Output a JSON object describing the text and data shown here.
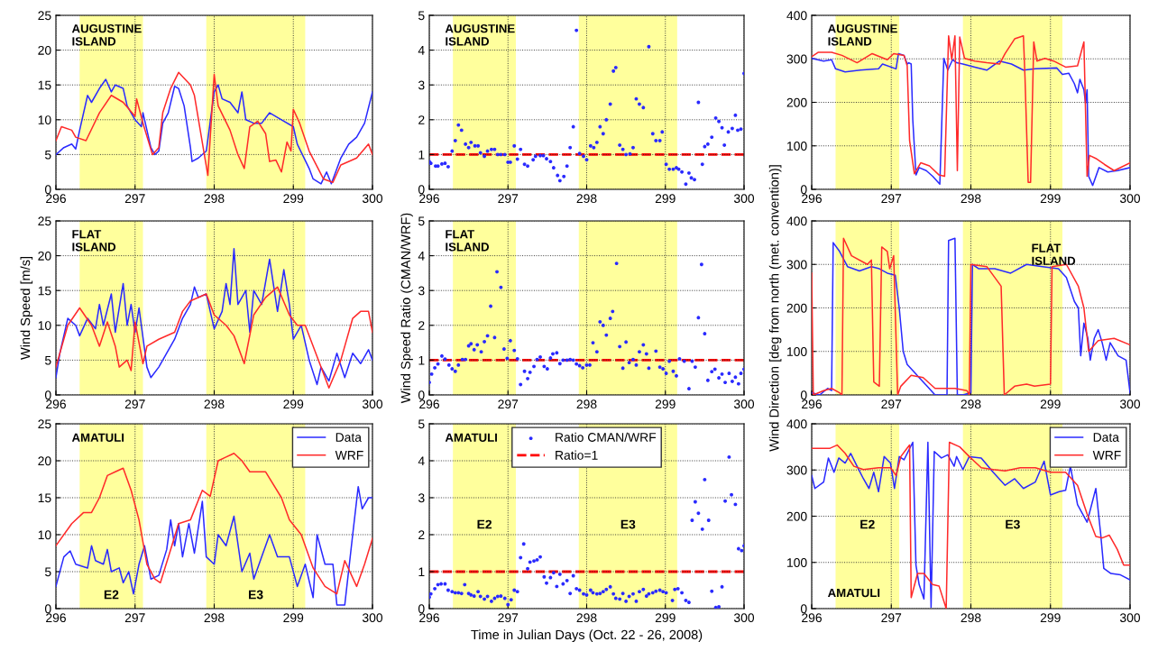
{
  "chart_data": [
    {
      "type": "line",
      "xlim": [
        296,
        300
      ],
      "ylim": [
        0,
        25
      ],
      "xticks": [
        296,
        297,
        298,
        299,
        300
      ],
      "yticks": [
        0,
        5,
        10,
        15,
        20,
        25
      ],
      "grid": true,
      "annotations": [
        "AUGUSTINE\nISLAND"
      ],
      "bands": [
        {
          "axis": "x",
          "from": 296.3,
          "to": 297.1,
          "color": "#ffff9c"
        },
        {
          "axis": "x",
          "from": 297.9,
          "to": 299.15,
          "color": "#ffff9c"
        }
      ],
      "series": [
        {
          "color": "#2a2aff",
          "x": [
            296,
            296.1,
            296.2,
            296.25,
            296.3,
            296.4,
            296.45,
            296.55,
            296.63,
            296.7,
            296.75,
            296.85,
            296.9,
            297.0,
            297.08,
            297.1,
            297.2,
            297.25,
            297.3,
            297.35,
            297.42,
            297.5,
            297.55,
            297.62,
            297.7,
            297.72,
            297.8,
            297.9,
            298.0,
            298.05,
            298.1,
            298.2,
            298.3,
            298.35,
            298.4,
            298.5,
            298.6,
            298.7,
            298.85,
            299.0,
            299.05,
            299.2,
            299.25,
            299.35,
            299.42,
            299.48,
            299.6,
            299.7,
            299.8,
            299.9,
            300
          ],
          "values": [
            5,
            6,
            6.5,
            5.8,
            8.5,
            13.5,
            12.5,
            14.5,
            15.8,
            14,
            15,
            14.5,
            12,
            10,
            9,
            11,
            6,
            5,
            5.5,
            9.5,
            11,
            14.8,
            14.5,
            12,
            6,
            4,
            4.5,
            5.5,
            14,
            15,
            13,
            12.5,
            11,
            14,
            10,
            9.5,
            9.5,
            11,
            10,
            9,
            6.5,
            3,
            1.5,
            0.8,
            2.5,
            0.8,
            4.5,
            6.5,
            7.5,
            9.5,
            14
          ]
        },
        {
          "color": "#ff2a2a",
          "x": [
            296,
            296.07,
            296.2,
            296.25,
            296.38,
            296.55,
            296.7,
            296.85,
            297.0,
            297.02,
            297.1,
            297.22,
            297.3,
            297.35,
            297.45,
            297.55,
            297.7,
            297.75,
            297.92,
            298.0,
            298.05,
            298.2,
            298.3,
            298.38,
            298.45,
            298.55,
            298.65,
            298.7,
            298.78,
            298.85,
            298.92,
            298.97,
            299.0,
            299.08,
            299.2,
            299.38,
            299.5,
            299.6,
            299.8,
            299.95,
            300
          ],
          "values": [
            7,
            9,
            8.5,
            7.5,
            7,
            11,
            13.5,
            12.5,
            10.5,
            13,
            9.5,
            5,
            6,
            11,
            14.5,
            16.8,
            15,
            13.5,
            2,
            16.5,
            12,
            8.5,
            5,
            3,
            9,
            9.8,
            8,
            4,
            4.2,
            2.5,
            6.8,
            5.5,
            11.5,
            9.5,
            5.5,
            1.5,
            1,
            3.5,
            4.5,
            6.5,
            5
          ]
        }
      ]
    },
    {
      "type": "scatter",
      "xlim": [
        296,
        300
      ],
      "ylim": [
        0,
        5
      ],
      "xticks": [
        296,
        297,
        298,
        299,
        300
      ],
      "yticks": [
        0,
        1,
        2,
        3,
        4,
        5
      ],
      "grid": true,
      "marker": "circle",
      "annotations": [
        "AUGUSTINE\nISLAND"
      ],
      "bands": [
        {
          "axis": "x",
          "from": 296.3,
          "to": 297.1,
          "color": "#ffff9c"
        },
        {
          "axis": "x",
          "from": 297.9,
          "to": 299.15,
          "color": "#ffff9c"
        }
      ],
      "ref_lines": [
        {
          "axis": "y",
          "value": 1,
          "color": "#ff0000",
          "line_style": "dashed"
        }
      ],
      "series": [
        {
          "color": "#2a2aff",
          "x": [
            296,
            296.02,
            296.08,
            296.11,
            296.16,
            296.2,
            296.24,
            296.29,
            296.33,
            296.37,
            296.41,
            296.46,
            296.5,
            296.53,
            296.58,
            296.62,
            296.65,
            296.7,
            296.74,
            296.79,
            296.83,
            296.87,
            296.91,
            296.96,
            297.0,
            297.03,
            297.08,
            297.12,
            297.16,
            297.21,
            297.25,
            297.32,
            297.35,
            297.41,
            297.45,
            297.49,
            297.54,
            297.58,
            297.63,
            297.66,
            297.71,
            297.75,
            297.79,
            297.83,
            297.87,
            297.91,
            297.96,
            298.0,
            298.05,
            298.09,
            298.13,
            298.17,
            298.21,
            298.25,
            298.3,
            298.34,
            298.37,
            298.42,
            298.46,
            298.5,
            298.55,
            298.59,
            298.63,
            298.67,
            298.72,
            298.79,
            298.84,
            298.88,
            298.93,
            298.96,
            299.01,
            299.05,
            299.1,
            299.14,
            299.17,
            299.21,
            299.26,
            299.3,
            299.33,
            299.37,
            299.42,
            299.47,
            299.5,
            299.54,
            299.59,
            299.64,
            299.68,
            299.72,
            299.75,
            299.8,
            299.85,
            299.89,
            299.92,
            299.96,
            300
          ],
          "values": [
            0.8,
            0.75,
            0.67,
            0.67,
            0.73,
            0.75,
            0.65,
            1.1,
            1.4,
            1.85,
            1.7,
            1.3,
            1.2,
            1.35,
            1.25,
            1.25,
            1.05,
            0.95,
            1.1,
            1.15,
            1.15,
            1.0,
            1.0,
            1.0,
            0.78,
            0.78,
            1.25,
            0.87,
            1.15,
            0.72,
            0.67,
            0.85,
            0.95,
            0.97,
            0.97,
            0.88,
            0.8,
            0.62,
            0.4,
            0.25,
            0.37,
            0.67,
            1.2,
            1.8,
            4.57,
            1.03,
            0.95,
            0.85,
            1.25,
            1.2,
            1.35,
            1.8,
            1.6,
            2.0,
            2.45,
            3.4,
            3.5,
            1.27,
            1.15,
            1.0,
            1.02,
            1.2,
            2.6,
            2.45,
            2.35,
            4.1,
            1.6,
            1.4,
            1.4,
            1.65,
            0.72,
            0.58,
            0.58,
            0.62,
            0.58,
            0.5,
            0.15,
            0.47,
            0.33,
            0.28,
            2.5,
            0.72,
            1.23,
            1.3,
            1.5,
            2.05,
            1.95,
            1.77,
            1.27,
            1.65,
            1.75,
            2.13,
            1.7,
            1.73,
            3.33
          ]
        }
      ]
    },
    {
      "type": "line",
      "xlim": [
        296,
        300
      ],
      "ylim": [
        0,
        400
      ],
      "xticks": [
        296,
        297,
        298,
        299,
        300
      ],
      "yticks": [
        0,
        100,
        200,
        300,
        400
      ],
      "grid": true,
      "annotations": [
        "AUGUSTINE\nISLAND"
      ],
      "bands": [
        {
          "axis": "x",
          "from": 296.3,
          "to": 297.1,
          "color": "#ffff9c"
        },
        {
          "axis": "x",
          "from": 297.9,
          "to": 299.15,
          "color": "#ffff9c"
        }
      ],
      "series": [
        {
          "color": "#2a2aff",
          "x": [
            296,
            296.15,
            296.25,
            296.3,
            296.42,
            296.61,
            296.84,
            296.89,
            297.06,
            297.09,
            297.16,
            297.2,
            297.22,
            297.25,
            297.27,
            297.31,
            297.35,
            297.44,
            297.52,
            297.61,
            297.66,
            297.71,
            297.77,
            297.82,
            297.9,
            298.05,
            298.2,
            298.36,
            298.51,
            298.66,
            298.81,
            299.08,
            299.15,
            299.23,
            299.3,
            299.34,
            299.37,
            299.42,
            299.44,
            299.46,
            299.48,
            299.53,
            299.61,
            299.72,
            299.84,
            300
          ],
          "values": [
            301,
            295,
            298,
            277,
            270,
            274,
            277,
            288,
            277,
            312,
            308,
            288,
            291,
            288,
            160,
            33,
            50,
            43,
            30,
            12,
            301,
            274,
            298,
            291,
            288,
            281,
            274,
            295,
            288,
            274,
            277,
            279,
            264,
            267,
            243,
            222,
            253,
            229,
            198,
            229,
            30,
            9,
            50,
            40,
            43,
            50
          ]
        },
        {
          "color": "#ff2a2a",
          "x": [
            296,
            296.08,
            296.25,
            296.38,
            296.57,
            296.76,
            296.95,
            297.03,
            297.16,
            297.2,
            297.23,
            297.29,
            297.37,
            297.48,
            297.6,
            297.67,
            297.72,
            297.76,
            297.8,
            297.83,
            297.86,
            297.92,
            298.05,
            298.2,
            298.36,
            298.43,
            298.55,
            298.66,
            298.68,
            298.72,
            298.75,
            298.79,
            298.83,
            298.93,
            299.04,
            299.19,
            299.34,
            299.42,
            299.46,
            299.49,
            299.57,
            299.68,
            299.8,
            300
          ],
          "values": [
            305,
            315,
            315,
            308,
            291,
            312,
            298,
            312,
            308,
            284,
            112,
            36,
            61,
            54,
            33,
            30,
            353,
            298,
            353,
            43,
            350,
            301,
            295,
            291,
            288,
            312,
            346,
            353,
            257,
            16,
            16,
            339,
            295,
            301,
            295,
            281,
            284,
            339,
            30,
            78,
            71,
            57,
            43,
            61
          ]
        }
      ]
    },
    {
      "type": "line",
      "xlim": [
        296,
        300
      ],
      "ylim": [
        0,
        25
      ],
      "xticks": [
        296,
        297,
        298,
        299,
        300
      ],
      "yticks": [
        0,
        5,
        10,
        15,
        20,
        25
      ],
      "grid": true,
      "ylabel": "Wind Speed [m/s]",
      "annotations": [
        "FLAT\nISLAND"
      ],
      "bands": [
        {
          "axis": "x",
          "from": 296.3,
          "to": 297.1,
          "color": "#ffff9c"
        },
        {
          "axis": "x",
          "from": 297.9,
          "to": 299.15,
          "color": "#ffff9c"
        }
      ],
      "series": [
        {
          "color": "#2a2aff",
          "x": [
            296,
            296.05,
            296.15,
            296.25,
            296.3,
            296.4,
            296.5,
            296.55,
            296.6,
            296.7,
            296.75,
            296.85,
            296.9,
            296.95,
            297.0,
            297.05,
            297.15,
            297.2,
            297.3,
            297.4,
            297.5,
            297.6,
            297.7,
            297.75,
            297.8,
            297.9,
            298.0,
            298.1,
            298.15,
            298.2,
            298.25,
            298.3,
            298.4,
            298.45,
            298.5,
            298.6,
            298.7,
            298.8,
            298.88,
            298.95,
            299.0,
            299.1,
            299.2,
            299.3,
            299.35,
            299.45,
            299.55,
            299.65,
            299.75,
            299.85,
            299.95,
            300
          ],
          "values": [
            2.5,
            6,
            11,
            10,
            8.5,
            11,
            9.5,
            13,
            10,
            14.5,
            9,
            16,
            10,
            13,
            9,
            12.5,
            4,
            2.5,
            4,
            6,
            8,
            11,
            13,
            15.5,
            14,
            14.5,
            9.5,
            12,
            16,
            13,
            21,
            13,
            15,
            9,
            15,
            13,
            19.5,
            12,
            18,
            13,
            8,
            10,
            5,
            1.5,
            4,
            2,
            6,
            2.5,
            6,
            4.5,
            6.5,
            5
          ]
        },
        {
          "color": "#ff2a2a",
          "x": [
            296,
            296.15,
            296.3,
            296.45,
            296.55,
            296.65,
            296.75,
            296.8,
            296.9,
            296.95,
            297.0,
            297.1,
            297.15,
            297.3,
            297.5,
            297.6,
            297.7,
            297.9,
            298.0,
            298.15,
            298.25,
            298.38,
            298.5,
            298.65,
            298.8,
            298.95,
            299.05,
            299.15,
            299.3,
            299.45,
            299.6,
            299.75,
            299.85,
            299.95,
            300
          ],
          "values": [
            4,
            10,
            12.5,
            10,
            7,
            10.5,
            7,
            4,
            5,
            3.5,
            10.5,
            4.5,
            7,
            8,
            9,
            12,
            13.5,
            14.5,
            11.5,
            10,
            8.5,
            4.5,
            11.5,
            14,
            15.5,
            11.5,
            10,
            10,
            5.5,
            1,
            5,
            11,
            12,
            12,
            9
          ]
        }
      ]
    },
    {
      "type": "scatter",
      "xlim": [
        296,
        300
      ],
      "ylim": [
        0,
        5
      ],
      "xticks": [
        296,
        297,
        298,
        299,
        300
      ],
      "yticks": [
        0,
        1,
        2,
        3,
        4,
        5
      ],
      "grid": true,
      "marker": "circle",
      "ylabel": "Wind Speed Ratio (CMAN/WRF)",
      "annotations": [
        "FLAT\nISLAND"
      ],
      "bands": [
        {
          "axis": "x",
          "from": 296.3,
          "to": 297.1,
          "color": "#ffff9c"
        },
        {
          "axis": "x",
          "from": 297.9,
          "to": 299.15,
          "color": "#ffff9c"
        }
      ],
      "ref_lines": [
        {
          "axis": "y",
          "value": 1,
          "color": "#ff0000",
          "line_style": "dashed"
        }
      ],
      "series": [
        {
          "color": "#2a2aff",
          "x": [
            296,
            296.03,
            296.07,
            296.11,
            296.16,
            296.2,
            296.25,
            296.29,
            296.33,
            296.37,
            296.42,
            296.46,
            296.5,
            296.53,
            296.57,
            296.61,
            296.66,
            296.7,
            296.74,
            296.78,
            296.83,
            296.86,
            296.91,
            296.95,
            296.99,
            297.03,
            297.08,
            297.12,
            297.16,
            297.21,
            297.25,
            297.28,
            297.33,
            297.37,
            297.41,
            297.46,
            297.5,
            297.54,
            297.57,
            297.62,
            297.66,
            297.7,
            297.75,
            297.79,
            297.83,
            297.87,
            297.91,
            297.95,
            298.0,
            298.04,
            298.08,
            298.13,
            298.17,
            298.21,
            298.25,
            298.3,
            298.33,
            298.38,
            298.42,
            298.46,
            298.5,
            298.54,
            298.59,
            298.63,
            298.67,
            298.72,
            298.76,
            298.79,
            298.88,
            298.93,
            298.97,
            299.01,
            299.05,
            299.1,
            299.14,
            299.18,
            299.24,
            299.3,
            299.34,
            299.38,
            299.42,
            299.46,
            299.5,
            299.54,
            299.59,
            299.63,
            299.68,
            299.72,
            299.76,
            299.81,
            299.85,
            299.89,
            299.93,
            299.96,
            300
          ],
          "values": [
            0.36,
            0.6,
            0.78,
            0.89,
            1.12,
            1.03,
            0.86,
            0.75,
            0.68,
            0.86,
            1.02,
            1.02,
            1.41,
            1.47,
            1.3,
            1.44,
            1.24,
            1.53,
            1.7,
            2.55,
            1.65,
            3.54,
            3.09,
            1.32,
            1.05,
            1.56,
            1.28,
            1.04,
            0.3,
            0.68,
            0.47,
            0.65,
            0.82,
            1.02,
            1.09,
            0.82,
            0.75,
            1.06,
            1.18,
            1.21,
            0.9,
            1.0,
            1.0,
            1.02,
            1.0,
            0.89,
            0.84,
            0.78,
            0.86,
            0.86,
            1.5,
            1.24,
            2.1,
            2.0,
            1.72,
            2.2,
            2.4,
            3.78,
            1.39,
            0.77,
            1.52,
            0.93,
            1.02,
            0.86,
            1.24,
            1.44,
            1.18,
            0.77,
            1.26,
            0.8,
            0.75,
            0.62,
            0.97,
            0.68,
            0.55,
            1.04,
            0.97,
            0.18,
            0.97,
            0.8,
            2.22,
            3.75,
            1.76,
            0.42,
            0.67,
            0.74,
            0.49,
            0.6,
            0.36,
            0.62,
            0.39,
            0.51,
            0.32,
            0.62,
            0.74
          ]
        }
      ]
    },
    {
      "type": "line",
      "xlim": [
        296,
        300
      ],
      "ylim": [
        0,
        400
      ],
      "xticks": [
        296,
        297,
        298,
        299,
        300
      ],
      "yticks": [
        0,
        100,
        200,
        300,
        400
      ],
      "grid": true,
      "ylabel": "Wind Direction [deg from north (met. convention)]",
      "annotations": [
        "FLAT\nISLAND"
      ],
      "bands": [
        {
          "axis": "x",
          "from": 296.3,
          "to": 297.1,
          "color": "#ffff9c"
        },
        {
          "axis": "x",
          "from": 297.9,
          "to": 299.15,
          "color": "#ffff9c"
        }
      ],
      "series": [
        {
          "color": "#2a2aff",
          "x": [
            296,
            296.1,
            296.2,
            296.25,
            296.27,
            296.35,
            296.45,
            296.6,
            296.75,
            296.85,
            296.95,
            297.05,
            297.1,
            297.15,
            297.2,
            297.35,
            297.45,
            297.55,
            297.7,
            297.72,
            297.8,
            297.83,
            297.9,
            298.0,
            298.02,
            298.1,
            298.3,
            298.5,
            298.7,
            298.9,
            299.1,
            299.2,
            299.3,
            299.35,
            299.38,
            299.42,
            299.47,
            299.5,
            299.55,
            299.6,
            299.65,
            299.7,
            299.75,
            299.85,
            299.95,
            300
          ],
          "values": [
            5,
            0,
            15,
            10,
            350,
            330,
            295,
            285,
            295,
            290,
            280,
            275,
            200,
            100,
            70,
            40,
            20,
            0,
            0,
            355,
            360,
            0,
            0,
            5,
            300,
            290,
            290,
            280,
            300,
            295,
            290,
            270,
            215,
            200,
            90,
            165,
            130,
            80,
            130,
            150,
            120,
            80,
            120,
            90,
            80,
            5
          ]
        },
        {
          "color": "#ff2a2a",
          "x": [
            296,
            296.02,
            296.15,
            296.25,
            296.35,
            296.38,
            296.4,
            296.5,
            296.7,
            296.75,
            296.78,
            296.85,
            296.88,
            296.95,
            296.98,
            297.03,
            297.08,
            297.12,
            297.25,
            297.4,
            297.55,
            297.8,
            297.95,
            297.98,
            298.0,
            298.2,
            298.38,
            298.42,
            298.55,
            298.7,
            298.8,
            299.0,
            299.02,
            299.2,
            299.35,
            299.42,
            299.48,
            299.6,
            299.8,
            300
          ],
          "values": [
            280,
            0,
            10,
            15,
            5,
            0,
            360,
            320,
            300,
            310,
            30,
            20,
            340,
            330,
            290,
            320,
            0,
            20,
            45,
            40,
            15,
            15,
            10,
            0,
            300,
            295,
            250,
            0,
            20,
            25,
            20,
            25,
            295,
            300,
            250,
            200,
            100,
            125,
            130,
            115
          ]
        }
      ]
    },
    {
      "type": "line",
      "xlim": [
        296,
        300
      ],
      "ylim": [
        0,
        25
      ],
      "xticks": [
        296,
        297,
        298,
        299,
        300
      ],
      "yticks": [
        0,
        5,
        10,
        15,
        20,
        25
      ],
      "grid": true,
      "legend": "top right",
      "annotations": [
        "AMATULI"
      ],
      "bands": [
        {
          "axis": "x",
          "from": 296.3,
          "to": 297.1,
          "color": "#ffff9c",
          "label": "E2"
        },
        {
          "axis": "x",
          "from": 297.9,
          "to": 299.15,
          "color": "#ffff9c",
          "label": "E3"
        }
      ],
      "series": [
        {
          "name": "Data",
          "color": "#2a2aff",
          "x": [
            296,
            296.1,
            296.18,
            296.25,
            296.4,
            296.45,
            296.5,
            296.6,
            296.65,
            296.7,
            296.8,
            296.85,
            296.92,
            296.98,
            297.05,
            297.12,
            297.2,
            297.3,
            297.4,
            297.45,
            297.5,
            297.55,
            297.6,
            297.68,
            297.75,
            297.85,
            297.9,
            298.0,
            298.05,
            298.15,
            298.25,
            298.35,
            298.45,
            298.5,
            298.6,
            298.7,
            298.8,
            298.95,
            299.05,
            299.15,
            299.25,
            299.3,
            299.4,
            299.5,
            299.55,
            299.65,
            299.75,
            299.82,
            299.87,
            299.95,
            300
          ],
          "values": [
            3,
            7,
            7.8,
            6,
            5.5,
            8.5,
            6.5,
            6,
            8,
            5,
            5.5,
            3.5,
            5,
            2,
            6,
            8.5,
            4,
            4.5,
            8,
            12,
            8.5,
            11.5,
            7,
            11.5,
            7.5,
            14.5,
            7,
            6,
            10,
            8.5,
            12.5,
            5,
            7.5,
            4,
            7,
            10,
            7,
            7,
            3,
            6,
            1.5,
            10,
            6,
            6,
            0.5,
            0.5,
            10,
            16.5,
            13.5,
            15,
            15
          ]
        },
        {
          "name": "WRF",
          "color": "#ff2a2a",
          "x": [
            296,
            296.2,
            296.35,
            296.45,
            296.55,
            296.65,
            296.75,
            296.85,
            296.95,
            297.05,
            297.15,
            297.25,
            297.32,
            297.45,
            297.55,
            297.7,
            297.85,
            297.95,
            298.05,
            298.15,
            298.25,
            298.35,
            298.45,
            298.65,
            298.85,
            298.95,
            299.1,
            299.25,
            299.4,
            299.55,
            299.65,
            299.8,
            299.9,
            300
          ],
          "values": [
            8.5,
            11.5,
            13,
            13,
            15,
            18,
            18.5,
            19,
            16,
            12,
            6,
            4,
            3.5,
            8,
            11.5,
            12,
            16,
            15.2,
            20,
            20.5,
            21,
            20,
            18.5,
            18.5,
            15,
            12,
            10,
            5.5,
            3,
            2,
            6.5,
            3,
            6,
            9.5
          ]
        }
      ]
    },
    {
      "type": "scatter",
      "xlim": [
        296,
        300
      ],
      "ylim": [
        0,
        5
      ],
      "xticks": [
        296,
        297,
        298,
        299,
        300
      ],
      "yticks": [
        0,
        1,
        2,
        3,
        4,
        5
      ],
      "grid": true,
      "marker": "circle",
      "legend": "top",
      "xlabel": "Time in Julian Days (Oct. 22 - 26, 2008)",
      "annotations": [
        "AMATULI"
      ],
      "bands": [
        {
          "axis": "x",
          "from": 296.3,
          "to": 297.1,
          "color": "#ffff9c",
          "label": "E2"
        },
        {
          "axis": "x",
          "from": 297.9,
          "to": 299.15,
          "color": "#ffff9c",
          "label": "E3"
        }
      ],
      "ref_lines": [
        {
          "axis": "y",
          "value": 1,
          "color": "#ff0000",
          "line_style": "dashed",
          "label": "Ratio=1"
        }
      ],
      "series": [
        {
          "name": "Ratio CMAN/WRF",
          "color": "#2a2aff",
          "x": [
            296,
            296.02,
            296.07,
            296.11,
            296.15,
            296.2,
            296.24,
            296.29,
            296.33,
            296.37,
            296.41,
            296.45,
            296.5,
            296.53,
            296.57,
            296.62,
            296.65,
            296.7,
            296.74,
            296.79,
            296.83,
            296.87,
            296.91,
            296.96,
            297.0,
            297.04,
            297.08,
            297.12,
            297.16,
            297.2,
            297.25,
            297.28,
            297.33,
            297.37,
            297.41,
            297.46,
            297.49,
            297.54,
            297.58,
            297.62,
            297.66,
            297.7,
            297.75,
            297.79,
            297.83,
            297.87,
            297.91,
            297.96,
            298.0,
            298.05,
            298.08,
            298.13,
            298.17,
            298.21,
            298.25,
            298.3,
            298.34,
            298.37,
            298.42,
            298.46,
            298.5,
            298.54,
            298.59,
            298.63,
            298.67,
            298.72,
            298.76,
            298.79,
            298.84,
            298.88,
            298.93,
            298.97,
            299.01,
            299.09,
            299.12,
            299.16,
            299.21,
            299.26,
            299.3,
            299.34,
            299.38,
            299.42,
            299.47,
            299.5,
            299.55,
            299.59,
            299.64,
            299.68,
            299.72,
            299.76,
            299.81,
            299.84,
            299.89,
            299.93,
            299.97,
            300
          ],
          "values": [
            0.31,
            0.4,
            0.54,
            0.65,
            0.67,
            0.67,
            0.5,
            0.46,
            0.43,
            0.43,
            0.41,
            0.65,
            0.41,
            0.37,
            0.34,
            0.46,
            0.33,
            0.26,
            0.33,
            0.2,
            0.28,
            0.33,
            0.34,
            0.28,
            0.11,
            0.24,
            0.5,
            0.46,
            1.38,
            1.75,
            1.08,
            1.26,
            1.29,
            1.32,
            1.4,
            0.86,
            0.69,
            0.84,
            0.97,
            0.6,
            0.93,
            0.67,
            0.76,
            0.41,
            0.89,
            0.54,
            0.5,
            0.4,
            0.37,
            0.5,
            0.43,
            0.4,
            0.41,
            0.46,
            0.52,
            0.59,
            0.4,
            0.28,
            0.26,
            0.41,
            0.2,
            0.33,
            0.4,
            0.2,
            0.46,
            0.52,
            0.34,
            0.4,
            0.43,
            0.47,
            0.5,
            0.46,
            0.43,
            0.22,
            0.52,
            0.54,
            0.43,
            0.22,
            0.17,
            2.39,
            2.89,
            2.58,
            2.15,
            3.49,
            2.39,
            0.47,
            0.03,
            0.05,
            0.59,
            2.91,
            4.1,
            3.08,
            2.82,
            1.62,
            1.57,
            1.7
          ]
        }
      ]
    },
    {
      "type": "line",
      "xlim": [
        296,
        300
      ],
      "ylim": [
        0,
        400
      ],
      "xticks": [
        296,
        297,
        298,
        299,
        300
      ],
      "yticks": [
        0,
        100,
        200,
        300,
        400
      ],
      "grid": true,
      "legend": "top right",
      "annotations": [
        "AMATULI"
      ],
      "bands": [
        {
          "axis": "x",
          "from": 296.3,
          "to": 297.1,
          "color": "#ffff9c",
          "label": "E2"
        },
        {
          "axis": "x",
          "from": 297.9,
          "to": 299.15,
          "color": "#ffff9c",
          "label": "E3"
        }
      ],
      "series": [
        {
          "name": "Data",
          "color": "#2a2aff",
          "x": [
            296,
            296.04,
            296.15,
            296.21,
            296.28,
            296.34,
            296.42,
            296.49,
            296.57,
            296.65,
            296.72,
            296.78,
            296.84,
            296.91,
            296.99,
            297.04,
            297.1,
            297.16,
            297.22,
            297.27,
            297.31,
            297.35,
            297.41,
            297.46,
            297.5,
            297.54,
            297.63,
            297.71,
            297.79,
            297.82,
            297.9,
            297.98,
            298.13,
            298.28,
            298.43,
            298.55,
            298.66,
            298.81,
            298.92,
            299.0,
            299.11,
            299.19,
            299.25,
            299.34,
            299.46,
            299.57,
            299.63,
            299.67,
            299.76,
            299.88,
            300
          ],
          "values": [
            288,
            260,
            274,
            326,
            295,
            326,
            315,
            336,
            308,
            281,
            260,
            295,
            253,
            329,
            315,
            260,
            329,
            322,
            343,
            360,
            94,
            52,
            21,
            360,
            3,
            340,
            326,
            333,
            308,
            329,
            301,
            329,
            326,
            295,
            267,
            281,
            260,
            274,
            319,
            246,
            253,
            256,
            308,
            225,
            187,
            260,
            163,
            87,
            76,
            73,
            62
          ]
        },
        {
          "name": "WRF",
          "color": "#ff2a2a",
          "x": [
            296,
            296.23,
            296.32,
            296.42,
            296.53,
            296.65,
            296.84,
            296.99,
            297.06,
            297.12,
            297.18,
            297.23,
            297.25,
            297.33,
            297.41,
            297.52,
            297.6,
            297.69,
            297.73,
            297.86,
            297.98,
            298.13,
            298.28,
            298.43,
            298.62,
            298.81,
            299.0,
            299.19,
            299.34,
            299.46,
            299.57,
            299.65,
            299.74,
            299.84,
            299.92,
            300
          ],
          "values": [
            347,
            347,
            354,
            336,
            308,
            301,
            305,
            305,
            288,
            329,
            343,
            354,
            24,
            76,
            76,
            52,
            49,
            0,
            360,
            350,
            329,
            305,
            301,
            298,
            305,
            305,
            295,
            295,
            267,
            205,
            156,
            153,
            159,
            128,
            94,
            94
          ]
        }
      ]
    }
  ]
}
